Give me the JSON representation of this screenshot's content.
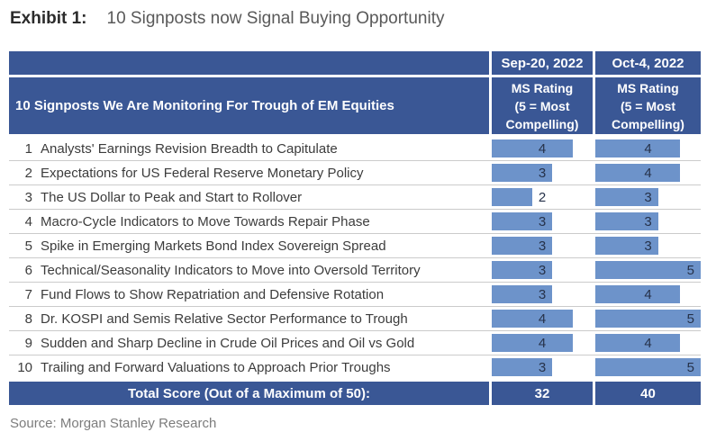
{
  "title": {
    "exhibit": "Exhibit 1:",
    "text": "10 Signposts now Signal Buying Opportunity"
  },
  "chart_data": {
    "type": "table",
    "title": "10 Signposts now Signal Buying Opportunity",
    "row_header": "10 Signposts We Are Monitoring For Trough of EM Equities",
    "max_rating": 5,
    "columns": [
      {
        "date": "Sep-20, 2022",
        "rating_header_lines": [
          "MS Rating",
          "(5 = Most",
          "Compelling)"
        ]
      },
      {
        "date": "Oct-4, 2022",
        "rating_header_lines": [
          "MS Rating",
          "(5 = Most",
          "Compelling)"
        ]
      }
    ],
    "rows": [
      {
        "num": "1",
        "label": "Analysts' Earnings Revision Breadth to Capitulate",
        "ratings": [
          4,
          4
        ]
      },
      {
        "num": "2",
        "label": "Expectations for US Federal Reserve Monetary Policy",
        "ratings": [
          3,
          4
        ]
      },
      {
        "num": "3",
        "label": "The US Dollar to Peak and Start to Rollover",
        "ratings": [
          2,
          3
        ]
      },
      {
        "num": "4",
        "label": "Macro-Cycle Indicators to Move Towards Repair Phase",
        "ratings": [
          3,
          3
        ]
      },
      {
        "num": "5",
        "label": "Spike in Emerging Markets Bond Index Sovereign Spread",
        "ratings": [
          3,
          3
        ]
      },
      {
        "num": "6",
        "label": "Technical/Seasonality Indicators to Move into Oversold Territory",
        "ratings": [
          3,
          5
        ]
      },
      {
        "num": "7",
        "label": "Fund Flows to Show Repatriation and Defensive Rotation",
        "ratings": [
          3,
          4
        ]
      },
      {
        "num": "8",
        "label": "Dr. KOSPI and Semis Relative Sector Performance to Trough",
        "ratings": [
          4,
          5
        ]
      },
      {
        "num": "9",
        "label": "Sudden and Sharp Decline in Crude Oil Prices and Oil vs Gold",
        "ratings": [
          4,
          4
        ]
      },
      {
        "num": "10",
        "label": "Trailing and Forward Valuations to Approach Prior Troughs",
        "ratings": [
          3,
          5
        ]
      }
    ],
    "total": {
      "label": "Total Score (Out of a Maximum of 50):",
      "values": [
        "32",
        "40"
      ]
    }
  },
  "source": "Source: Morgan Stanley Research",
  "colors": {
    "header_bg": "#3A5795",
    "bar": "#6D93CA",
    "bar_num": "#26324A",
    "body_text": "#3C3C3C",
    "separator": "#CBCBCB",
    "title_color": "#2B2B2B",
    "subtitle_color": "#595959",
    "source_color": "#7C7C7C"
  }
}
